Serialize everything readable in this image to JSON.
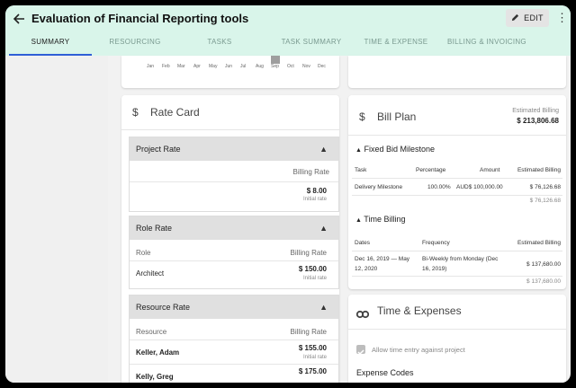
{
  "header": {
    "title": "Evaluation of Financial Reporting tools",
    "edit_label": "EDIT"
  },
  "tabs": [
    {
      "label": "SUMMARY"
    },
    {
      "label": "RESOURCING"
    },
    {
      "label": "TASKS"
    },
    {
      "label": "TASK SUMMARY"
    },
    {
      "label": "TIME & EXPENSE"
    },
    {
      "label": "BILLING & INVOICING"
    }
  ],
  "timeline": {
    "months": [
      "Jan",
      "Feb",
      "Mar",
      "Apr",
      "May",
      "Jun",
      "Jul",
      "Aug",
      "Sep",
      "Oct",
      "Nov",
      "Dec"
    ],
    "highlight_month": "Sep"
  },
  "rate_card": {
    "title": "Rate Card",
    "project_rate": {
      "title": "Project Rate",
      "col_billing": "Billing Rate",
      "value": "$ 8.00",
      "sub": "Initial rate"
    },
    "role_rate": {
      "title": "Role Rate",
      "col_role": "Role",
      "col_billing": "Billing Rate",
      "rows": [
        {
          "name": "Architect",
          "value": "$ 150.00",
          "sub": "Initial rate"
        }
      ]
    },
    "resource_rate": {
      "title": "Resource Rate",
      "col_resource": "Resource",
      "col_billing": "Billing Rate",
      "rows": [
        {
          "name": "Keller, Adam",
          "value": "$ 155.00",
          "sub": "Initial rate"
        },
        {
          "name": "Kelly, Greg",
          "value": "$ 175.00",
          "sub": ""
        }
      ]
    }
  },
  "bill_plan": {
    "title": "Bill Plan",
    "estimated_label": "Estimated Billing",
    "estimated_value": "$ 213,806.68",
    "fixed_bid": {
      "title": "Fixed Bid Milestone",
      "col_task": "Task",
      "col_percentage": "Percentage",
      "col_amount": "Amount",
      "col_estimated": "Estimated Billing",
      "row": {
        "task": "Delivery Milestone",
        "percentage": "100.00%",
        "amount": "AUD$ 100,000.00",
        "estimated": "$ 76,126.68"
      },
      "total": "$ 76,126.68"
    },
    "time_billing": {
      "title": "Time Billing",
      "col_dates": "Dates",
      "col_frequency": "Frequency",
      "col_estimated": "Estimated Billing",
      "row": {
        "dates_line1": "Dec 16, 2019 — May",
        "dates_line2": "12, 2020",
        "freq_line1": "Bi-Weekly from Monday (Dec",
        "freq_line2": "16, 2019)",
        "estimated": "$ 137,680.00"
      },
      "total": "$ 137,680.00"
    }
  },
  "time_expenses": {
    "title": "Time & Expenses",
    "allow_time_label": "Allow time entry against project",
    "allow_time_checked": true,
    "expense_codes_label": "Expense Codes"
  }
}
